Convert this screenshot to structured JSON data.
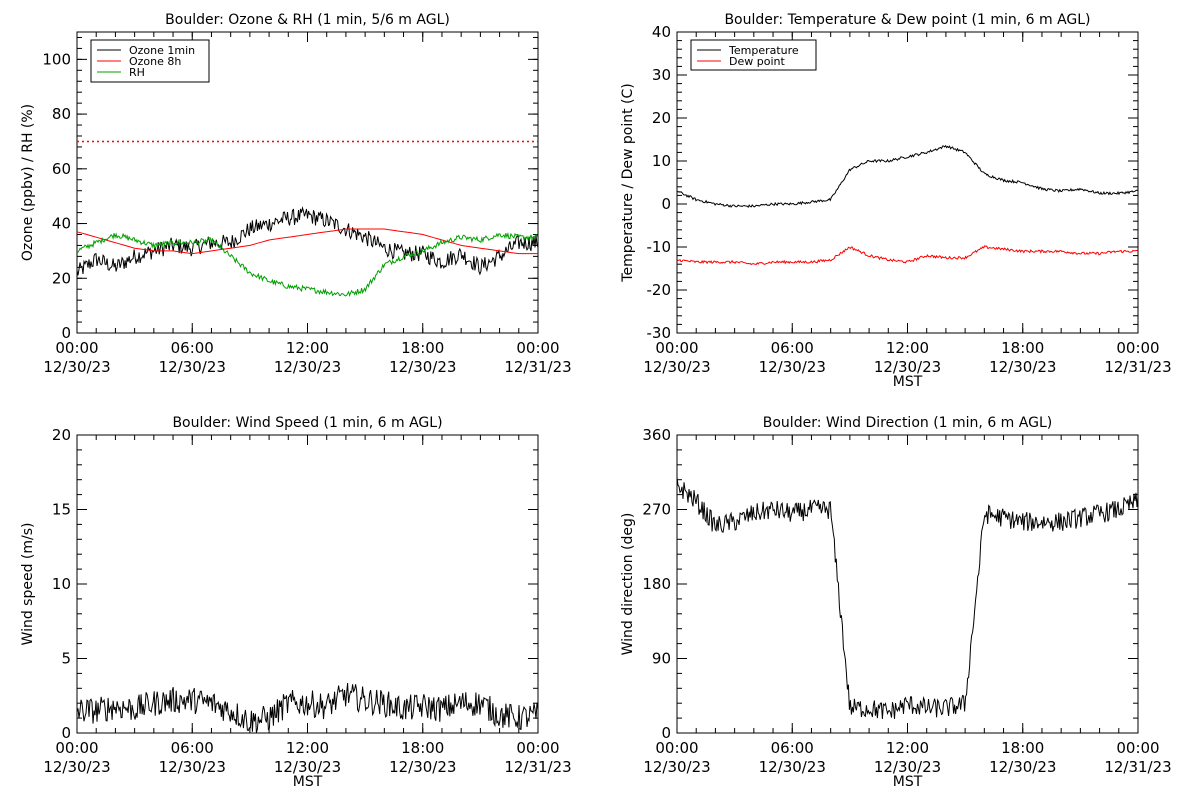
{
  "colors": {
    "black": "#000000",
    "red": "#ff0000",
    "green": "#00a000"
  },
  "chart_data": [
    {
      "type": "line",
      "title": "Boulder: Ozone & RH (1 min, 5/6 m AGL)",
      "xlabel": "",
      "ylabel": "Ozone (ppbv) / RH (%)",
      "ylim": [
        0,
        110
      ],
      "yticks": [
        0,
        20,
        40,
        60,
        80,
        100
      ],
      "xticks": [
        {
          "time": "00:00",
          "date": "12/30/23"
        },
        {
          "time": "06:00",
          "date": "12/30/23"
        },
        {
          "time": "12:00",
          "date": "12/30/23"
        },
        {
          "time": "18:00",
          "date": "12/30/23"
        },
        {
          "time": "00:00",
          "date": "12/31/23"
        }
      ],
      "x_hours": [
        0,
        1,
        2,
        3,
        4,
        5,
        6,
        7,
        8,
        9,
        10,
        11,
        12,
        13,
        14,
        15,
        16,
        17,
        18,
        19,
        20,
        21,
        22,
        23,
        24
      ],
      "legend": {
        "position": "top-left",
        "entries": [
          {
            "name": "Ozone 1min",
            "color": "#000000"
          },
          {
            "name": "Ozone 8h",
            "color": "#ff0000"
          },
          {
            "name": "RH",
            "color": "#00a000"
          }
        ]
      },
      "reference_line": {
        "value": 70,
        "color": "#ff0000",
        "style": "dotted"
      },
      "series": [
        {
          "name": "Ozone 1min",
          "color": "#000000",
          "noise": 3,
          "values": [
            22,
            27,
            24,
            28,
            30,
            32,
            31,
            33,
            33,
            38,
            40,
            42,
            43,
            41,
            38,
            35,
            31,
            29,
            29,
            26,
            29,
            24,
            28,
            33,
            33
          ]
        },
        {
          "name": "Ozone 8h",
          "color": "#ff0000",
          "noise": 0,
          "values": [
            37,
            35,
            33,
            31,
            30,
            30,
            29,
            30,
            31,
            32,
            34,
            35,
            36,
            37,
            38,
            38,
            38,
            37,
            36,
            34,
            32,
            31,
            30,
            29,
            29
          ]
        },
        {
          "name": "RH",
          "color": "#00a000",
          "noise": 1,
          "values": [
            30,
            33,
            36,
            34,
            32,
            33,
            33,
            34,
            28,
            22,
            19,
            17,
            16,
            15,
            14,
            16,
            25,
            28,
            30,
            33,
            35,
            34,
            36,
            35,
            35
          ]
        }
      ]
    },
    {
      "type": "line",
      "title": "Boulder: Temperature & Dew point (1 min, 6 m AGL)",
      "xlabel": "MST",
      "ylabel": "Temperature / Dew point (C)",
      "ylim": [
        -30,
        40
      ],
      "yticks": [
        -30,
        -20,
        -10,
        0,
        10,
        20,
        30,
        40
      ],
      "xticks": [
        {
          "time": "00:00",
          "date": "12/30/23"
        },
        {
          "time": "06:00",
          "date": "12/30/23"
        },
        {
          "time": "12:00",
          "date": "12/30/23"
        },
        {
          "time": "18:00",
          "date": "12/30/23"
        },
        {
          "time": "00:00",
          "date": "12/31/23"
        }
      ],
      "x_hours": [
        0,
        1,
        2,
        3,
        4,
        5,
        6,
        7,
        8,
        9,
        10,
        11,
        12,
        13,
        14,
        15,
        16,
        17,
        18,
        19,
        20,
        21,
        22,
        23,
        24
      ],
      "legend": {
        "position": "top-left",
        "entries": [
          {
            "name": "Temperature",
            "color": "#000000"
          },
          {
            "name": "Dew point",
            "color": "#ff0000"
          }
        ]
      },
      "series": [
        {
          "name": "Temperature",
          "color": "#000000",
          "noise": 0.3,
          "values": [
            3,
            1,
            0,
            -0.5,
            -0.5,
            0,
            0,
            0.5,
            1,
            8,
            10,
            10,
            11,
            12,
            13.5,
            12,
            7,
            5.5,
            5,
            3.5,
            3,
            3.5,
            2.5,
            2.5,
            3
          ]
        },
        {
          "name": "Dew point",
          "color": "#ff0000",
          "noise": 0.3,
          "values": [
            -13,
            -13.5,
            -13.5,
            -13.5,
            -14,
            -13.5,
            -13.5,
            -13.5,
            -13,
            -10,
            -12,
            -13,
            -13.5,
            -12,
            -12.5,
            -12.5,
            -10,
            -10.5,
            -11,
            -11,
            -11,
            -11.5,
            -11.5,
            -11,
            -11
          ]
        }
      ]
    },
    {
      "type": "line",
      "title": "Boulder: Wind Speed (1 min, 6 m AGL)",
      "xlabel": "MST",
      "ylabel": "Wind speed (m/s)",
      "ylim": [
        0,
        20
      ],
      "yticks": [
        0,
        5,
        10,
        15,
        20
      ],
      "xticks": [
        {
          "time": "00:00",
          "date": "12/30/23"
        },
        {
          "time": "06:00",
          "date": "12/30/23"
        },
        {
          "time": "12:00",
          "date": "12/30/23"
        },
        {
          "time": "18:00",
          "date": "12/30/23"
        },
        {
          "time": "00:00",
          "date": "12/31/23"
        }
      ],
      "x_hours": [
        0,
        1,
        2,
        3,
        4,
        5,
        6,
        7,
        8,
        9,
        10,
        11,
        12,
        13,
        14,
        15,
        16,
        17,
        18,
        19,
        20,
        21,
        22,
        23,
        24
      ],
      "series": [
        {
          "name": "",
          "color": "#000000",
          "noise": 0.9,
          "values": [
            1.5,
            1.5,
            1.8,
            1.6,
            2.0,
            2.2,
            2.2,
            2.0,
            1.5,
            0.8,
            1.0,
            2.0,
            2.0,
            1.8,
            2.6,
            2.2,
            2.0,
            1.6,
            1.8,
            1.6,
            2.0,
            2.0,
            1.2,
            1.0,
            1.2
          ]
        }
      ]
    },
    {
      "type": "line",
      "title": "Boulder: Wind Direction (1 min, 6 m AGL)",
      "xlabel": "MST",
      "ylabel": "Wind direction (deg)",
      "ylim": [
        0,
        360
      ],
      "yticks": [
        0,
        90,
        180,
        270,
        360
      ],
      "xticks": [
        {
          "time": "00:00",
          "date": "12/30/23"
        },
        {
          "time": "06:00",
          "date": "12/30/23"
        },
        {
          "time": "12:00",
          "date": "12/30/23"
        },
        {
          "time": "18:00",
          "date": "12/30/23"
        },
        {
          "time": "00:00",
          "date": "12/31/23"
        }
      ],
      "x_hours": [
        0,
        1,
        2,
        3,
        4,
        5,
        6,
        7,
        8,
        9,
        10,
        11,
        12,
        13,
        14,
        15,
        16,
        17,
        18,
        19,
        20,
        21,
        22,
        23,
        24
      ],
      "series": [
        {
          "name": "",
          "color": "#000000",
          "noise": 12,
          "wrap": true,
          "values": [
            300,
            280,
            250,
            255,
            265,
            270,
            265,
            270,
            270,
            30,
            30,
            25,
            35,
            30,
            30,
            35,
            265,
            260,
            255,
            255,
            255,
            260,
            265,
            270,
            280
          ]
        }
      ]
    }
  ]
}
